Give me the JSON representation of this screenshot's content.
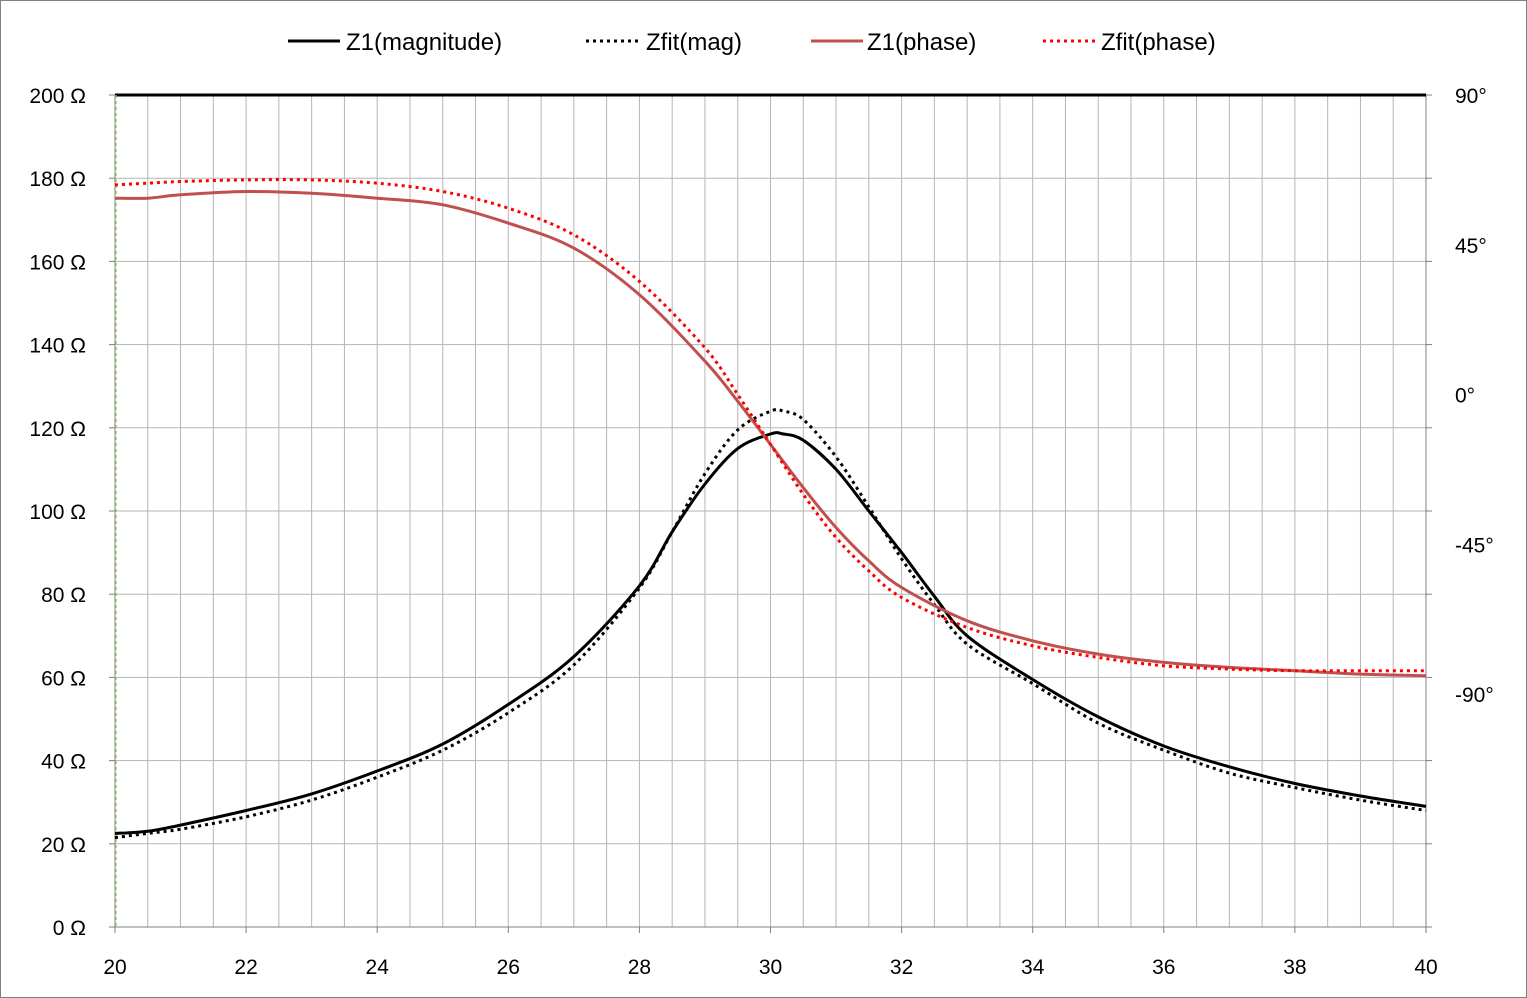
{
  "chart_data": {
    "type": "line",
    "title": "",
    "xlabel": "",
    "ylabel": "",
    "y2label": "",
    "xlim": [
      20,
      40
    ],
    "ylim": [
      0,
      200
    ],
    "y2lim": [
      -160,
      90
    ],
    "grid": true,
    "legend_position": "top",
    "x_ticks": [
      "20",
      "22",
      "24",
      "26",
      "28",
      "30",
      "32",
      "34",
      "36",
      "38",
      "40"
    ],
    "y_ticks": [
      "0 Ω",
      "20 Ω",
      "40 Ω",
      "60 Ω",
      "80 Ω",
      "100 Ω",
      "120 Ω",
      "140 Ω",
      "160 Ω",
      "180 Ω",
      "200 Ω"
    ],
    "y2_ticks": [
      "90°",
      "45°",
      "0°",
      "-45°",
      "-90°"
    ],
    "series": [
      {
        "name": "Z1(magnitude)",
        "axis": "left",
        "color": "#000000",
        "style": "solid",
        "x": [
          20,
          20.5,
          21,
          22,
          23,
          24,
          25,
          26,
          27,
          28,
          28.5,
          29,
          29.5,
          30,
          30.2,
          30.5,
          31,
          31.5,
          32,
          32.5,
          33,
          34,
          35,
          36,
          37,
          38,
          39,
          40
        ],
        "values": [
          22.5,
          23,
          24.5,
          28,
          32,
          37.5,
          44,
          53.5,
          65,
          82,
          95,
          106.5,
          115,
          118.5,
          118.5,
          117,
          110,
          100,
          90,
          79.5,
          70,
          59.5,
          50.5,
          43.5,
          38.5,
          34.5,
          31.5,
          29
        ]
      },
      {
        "name": "Zfit(mag)",
        "axis": "left",
        "color": "#000000",
        "style": "dotted",
        "x": [
          20,
          20.5,
          21,
          22,
          23,
          24,
          25,
          26,
          27,
          28,
          28.5,
          29,
          29.5,
          30,
          30.2,
          30.5,
          31,
          31.5,
          32,
          32.5,
          33,
          34,
          35,
          36,
          37,
          38,
          39,
          40
        ],
        "values": [
          21.5,
          22.5,
          23.5,
          26.5,
          30.5,
          36,
          42.5,
          51.5,
          63,
          81.5,
          95,
          109,
          119.5,
          124,
          124,
          122,
          113,
          101,
          88.5,
          77.5,
          68,
          58.5,
          49,
          42.5,
          37,
          33.5,
          30.5,
          28
        ]
      },
      {
        "name": "Z1(phase)",
        "axis": "right",
        "color": "#C0504D",
        "style": "solid",
        "x": [
          20,
          20.5,
          21,
          22,
          23,
          24,
          25,
          26,
          27,
          28,
          29,
          29.5,
          30,
          30.5,
          31,
          31.5,
          32,
          33,
          34,
          35,
          36,
          37,
          38,
          39,
          40
        ],
        "values": [
          59,
          59,
          60,
          61,
          60.5,
          59,
          57,
          51.5,
          44,
          30,
          10,
          -2,
          -15,
          -28,
          -40,
          -50,
          -58,
          -68,
          -74,
          -78,
          -80.5,
          -82,
          -83,
          -84,
          -84.5
        ]
      },
      {
        "name": "Zfit(phase)",
        "axis": "right",
        "color": "#FF0000",
        "style": "dotted",
        "x": [
          20,
          20.5,
          21,
          22,
          23,
          24,
          25,
          26,
          27,
          28,
          29,
          29.5,
          30,
          30.5,
          31,
          31.5,
          32,
          33,
          34,
          35,
          36,
          37,
          38,
          39,
          40
        ],
        "values": [
          63,
          63.5,
          64,
          64.5,
          64.5,
          63.5,
          61,
          56,
          48,
          34,
          14,
          0,
          -15,
          -30,
          -43,
          -53,
          -61,
          -70,
          -75.5,
          -79,
          -81.5,
          -82.5,
          -83,
          -83,
          -83
        ]
      }
    ]
  }
}
